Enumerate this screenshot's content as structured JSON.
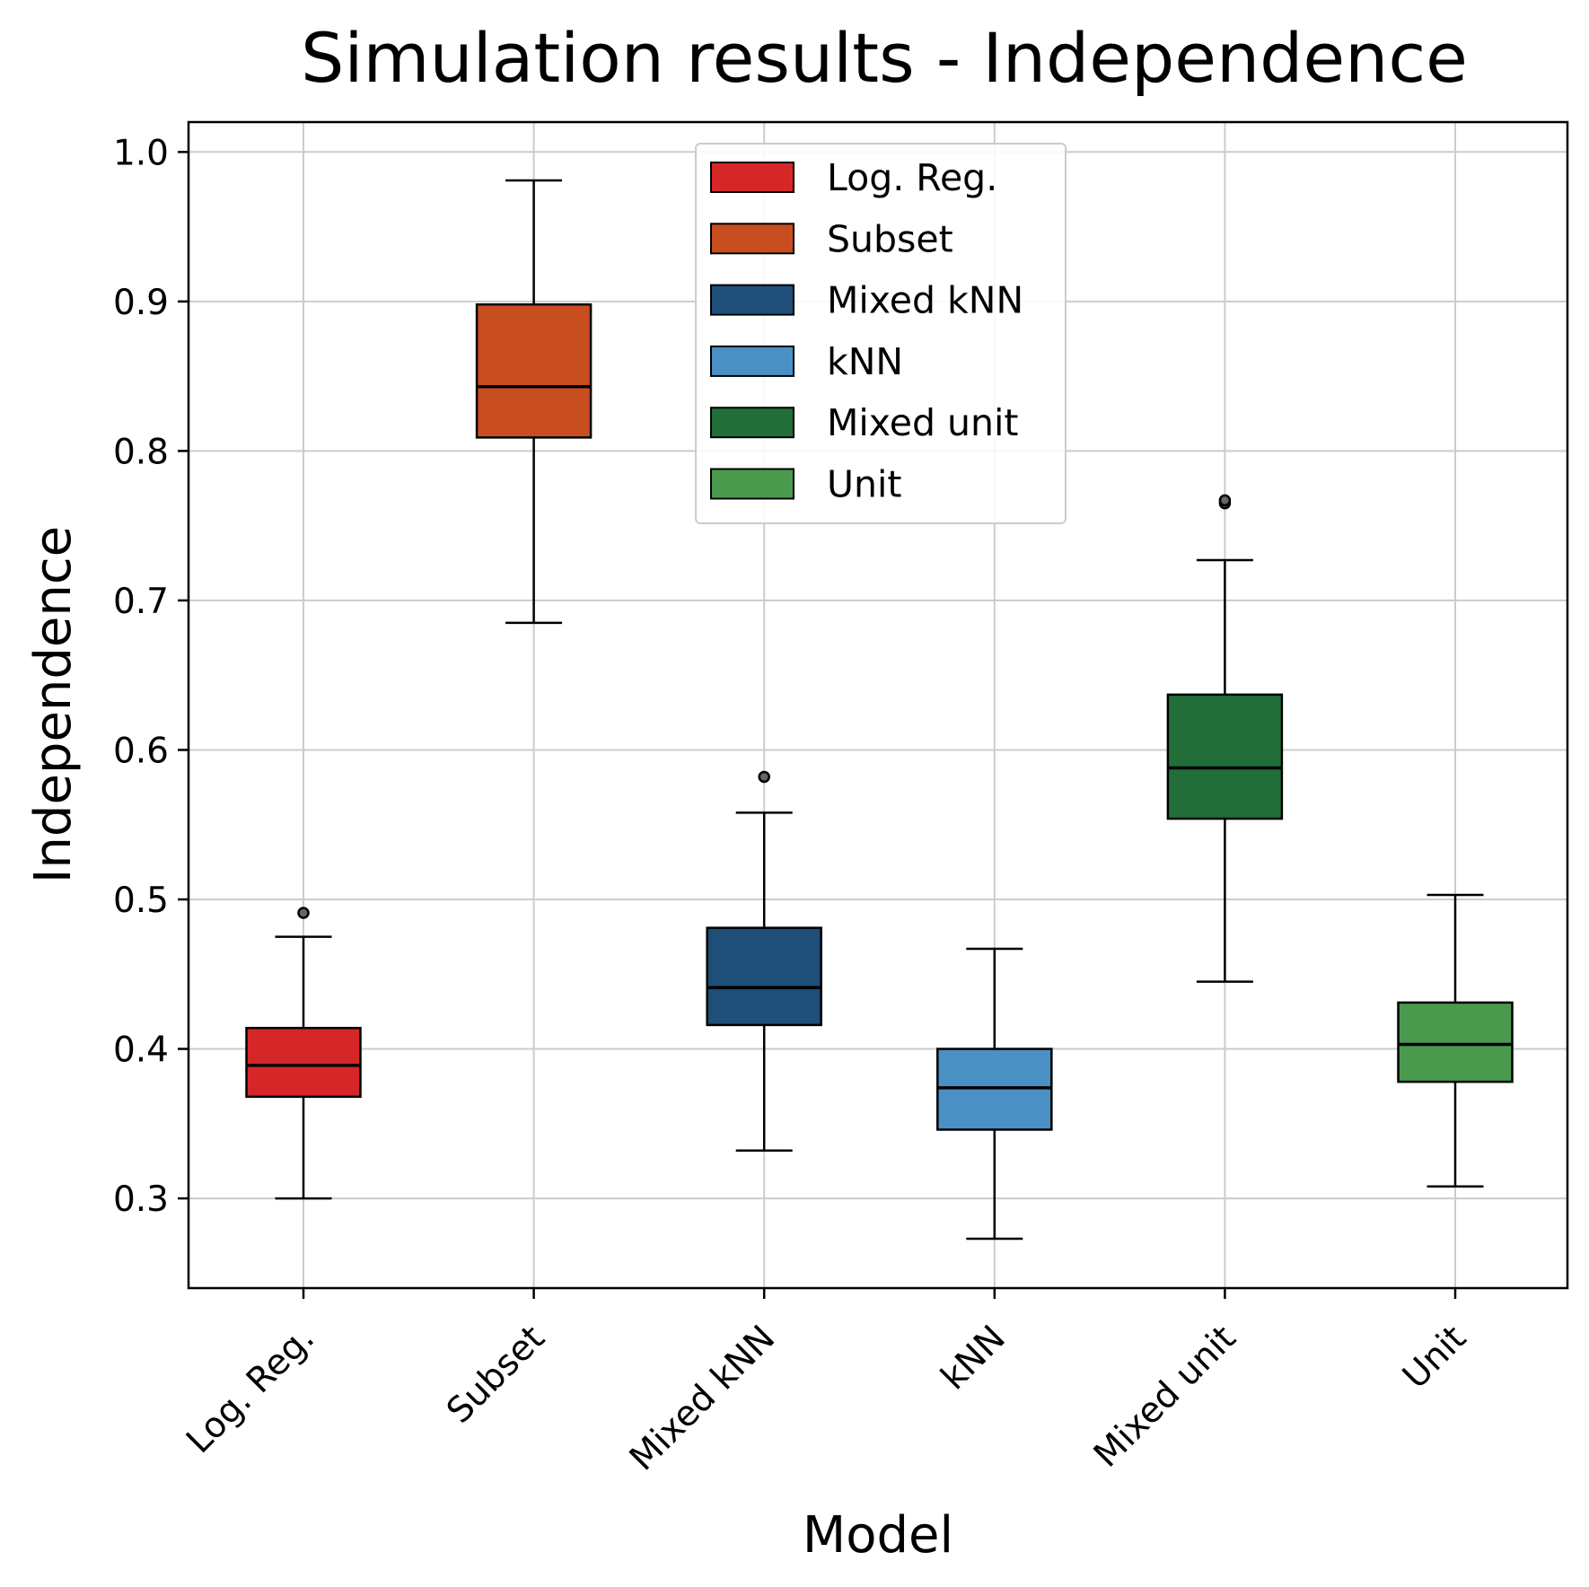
{
  "chart_data": {
    "type": "box",
    "title": "Simulation results - Independence",
    "xlabel": "Model",
    "ylabel": "Independence",
    "ylim": [
      0.24,
      1.02
    ],
    "yticks": [
      0.3,
      0.4,
      0.5,
      0.6,
      0.7,
      0.8,
      0.9,
      1.0
    ],
    "ytick_labels": [
      "0.3",
      "0.4",
      "0.5",
      "0.6",
      "0.7",
      "0.8",
      "0.9",
      "1.0"
    ],
    "categories": [
      "Log. Reg.",
      "Subset",
      "Mixed kNN",
      "kNN",
      "Mixed unit",
      "Unit"
    ],
    "grid": true,
    "legend": {
      "placement": "upper-center",
      "entries": [
        "Log. Reg.",
        "Subset",
        "Mixed kNN",
        "kNN",
        "Mixed unit",
        "Unit"
      ]
    },
    "series": [
      {
        "name": "Log. Reg.",
        "color": "#d62728",
        "whisker_low": 0.3,
        "q1": 0.368,
        "median": 0.389,
        "q3": 0.414,
        "whisker_high": 0.475,
        "fliers": [
          0.491
        ]
      },
      {
        "name": "Subset",
        "color": "#c84e1f",
        "whisker_low": 0.685,
        "q1": 0.809,
        "median": 0.843,
        "q3": 0.898,
        "whisker_high": 0.981,
        "fliers": []
      },
      {
        "name": "Mixed kNN",
        "color": "#1f4e79",
        "whisker_low": 0.332,
        "q1": 0.416,
        "median": 0.441,
        "q3": 0.481,
        "whisker_high": 0.558,
        "fliers": [
          0.582
        ]
      },
      {
        "name": "kNN",
        "color": "#4a90c4",
        "whisker_low": 0.273,
        "q1": 0.346,
        "median": 0.374,
        "q3": 0.4,
        "whisker_high": 0.467,
        "fliers": []
      },
      {
        "name": "Mixed unit",
        "color": "#216e39",
        "whisker_low": 0.445,
        "q1": 0.554,
        "median": 0.588,
        "q3": 0.637,
        "whisker_high": 0.727,
        "fliers": [
          0.765,
          0.767
        ]
      },
      {
        "name": "Unit",
        "color": "#4a9a4e",
        "whisker_low": 0.308,
        "q1": 0.378,
        "median": 0.403,
        "q3": 0.431,
        "whisker_high": 0.503,
        "fliers": []
      }
    ]
  }
}
